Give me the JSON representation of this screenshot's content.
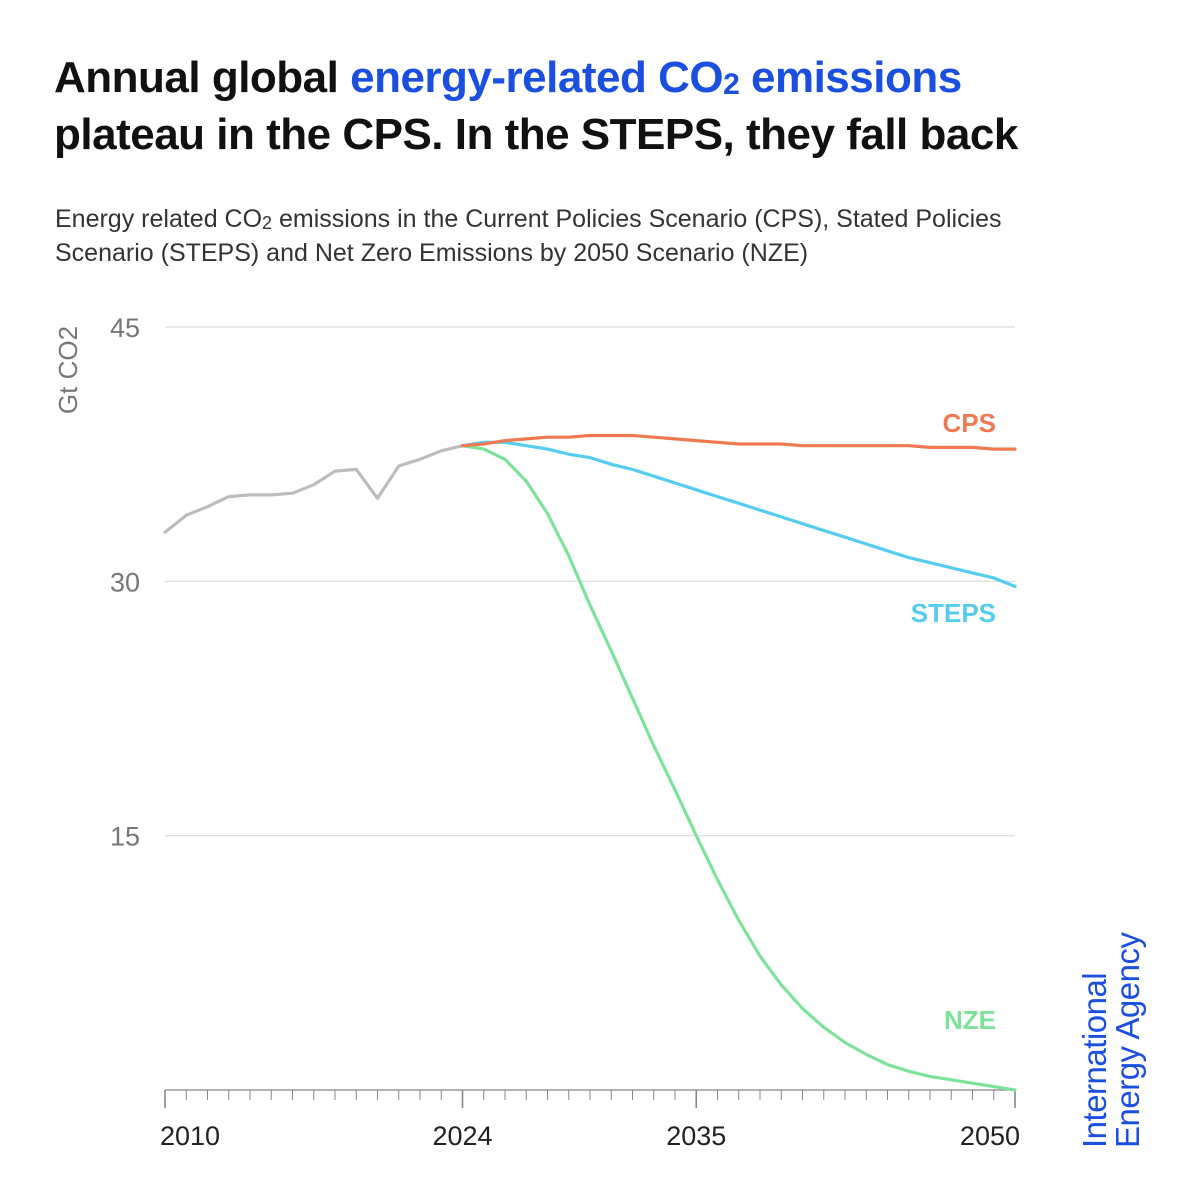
{
  "title": {
    "part1": "Annual global ",
    "highlight_main": "energy-related CO",
    "highlight_sub": "2",
    "highlight_end": " emissions",
    "line2": "plateau in the CPS. In the STEPS, they fall back"
  },
  "subtitle": {
    "part1": "Energy related CO",
    "sub": "2",
    "part2": " emissions in the Current Policies Scenario (CPS), Stated Policies Scenario (STEPS) and Net Zero Emissions by 2050 Scenario (NZE)"
  },
  "brand": {
    "line1": "International",
    "line2": "Energy Agency"
  },
  "colors": {
    "historical": "#bdbdbd",
    "cps": "#ef7a52",
    "steps": "#55ccf0",
    "nze": "#7ee39a",
    "grid": "#d9d9d9",
    "axis": "#888888",
    "tick_text": "#777777",
    "brand": "#1a4fe0"
  },
  "chart_data": {
    "type": "line",
    "ylabel": "Gt CO2",
    "ylim": [
      0,
      45
    ],
    "yticks": [
      15,
      30,
      45
    ],
    "xlim": [
      2010,
      2050
    ],
    "xticks": [
      2010,
      2024,
      2035,
      2050
    ],
    "grid": true,
    "series": [
      {
        "name": "Historical",
        "label": "",
        "color_key": "historical",
        "x": [
          2010,
          2011,
          2012,
          2013,
          2014,
          2015,
          2016,
          2017,
          2018,
          2019,
          2020,
          2021,
          2022,
          2023,
          2024
        ],
        "values": [
          32.9,
          33.9,
          34.4,
          35.0,
          35.1,
          35.1,
          35.2,
          35.7,
          36.5,
          36.6,
          34.9,
          36.8,
          37.2,
          37.7,
          38.0
        ]
      },
      {
        "name": "CPS",
        "label": "CPS",
        "color_key": "cps",
        "x": [
          2024,
          2025,
          2026,
          2027,
          2028,
          2029,
          2030,
          2031,
          2032,
          2033,
          2034,
          2035,
          2036,
          2037,
          2038,
          2039,
          2040,
          2041,
          2042,
          2043,
          2044,
          2045,
          2046,
          2047,
          2048,
          2049,
          2050
        ],
        "values": [
          38.0,
          38.1,
          38.3,
          38.4,
          38.5,
          38.5,
          38.6,
          38.6,
          38.6,
          38.5,
          38.4,
          38.3,
          38.2,
          38.1,
          38.1,
          38.1,
          38.0,
          38.0,
          38.0,
          38.0,
          38.0,
          38.0,
          37.9,
          37.9,
          37.9,
          37.8,
          37.8
        ]
      },
      {
        "name": "STEPS",
        "label": "STEPS",
        "color_key": "steps",
        "x": [
          2024,
          2025,
          2026,
          2027,
          2028,
          2029,
          2030,
          2031,
          2032,
          2033,
          2034,
          2035,
          2036,
          2037,
          2038,
          2039,
          2040,
          2041,
          2042,
          2043,
          2044,
          2045,
          2046,
          2047,
          2048,
          2049,
          2050
        ],
        "values": [
          38.0,
          38.2,
          38.2,
          38.0,
          37.8,
          37.5,
          37.3,
          36.9,
          36.6,
          36.2,
          35.8,
          35.4,
          35.0,
          34.6,
          34.2,
          33.8,
          33.4,
          33.0,
          32.6,
          32.2,
          31.8,
          31.4,
          31.1,
          30.8,
          30.5,
          30.2,
          29.7
        ]
      },
      {
        "name": "NZE",
        "label": "NZE",
        "color_key": "nze",
        "x": [
          2024,
          2025,
          2026,
          2027,
          2028,
          2029,
          2030,
          2031,
          2032,
          2033,
          2034,
          2035,
          2036,
          2037,
          2038,
          2039,
          2040,
          2041,
          2042,
          2043,
          2044,
          2045,
          2046,
          2047,
          2048,
          2049,
          2050
        ],
        "values": [
          38.0,
          37.8,
          37.2,
          35.9,
          34.0,
          31.5,
          28.6,
          25.9,
          23.1,
          20.3,
          17.7,
          15.0,
          12.4,
          10.0,
          7.9,
          6.2,
          4.8,
          3.7,
          2.8,
          2.1,
          1.5,
          1.1,
          0.8,
          0.6,
          0.4,
          0.2,
          0.0
        ]
      }
    ]
  }
}
